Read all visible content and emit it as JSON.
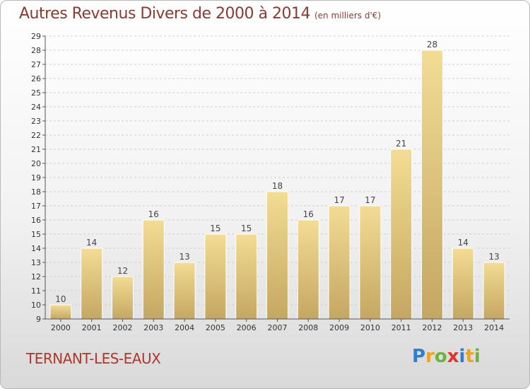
{
  "title": "Autres Revenus Divers de 2000 à 2014",
  "unit": "(en milliers d'€)",
  "city": "TERNANT-LES-EAUX",
  "logo": {
    "text": "Proxiti",
    "letters": [
      "P",
      "r",
      "o",
      "x",
      "i",
      "t",
      "i"
    ]
  },
  "colors": {
    "bar_top": "#f3dc94",
    "bar_bottom": "#c4a762",
    "title": "#8a3a2e",
    "city": "#b1362a",
    "grid": "#cfcfcf"
  },
  "chart_data": {
    "type": "bar",
    "categories": [
      "2000",
      "2001",
      "2002",
      "2003",
      "2004",
      "2005",
      "2006",
      "2007",
      "2008",
      "2009",
      "2010",
      "2011",
      "2012",
      "2013",
      "2014"
    ],
    "values": [
      10,
      14,
      12,
      16,
      13,
      15,
      15,
      18,
      16,
      17,
      17,
      21,
      28,
      14,
      13
    ],
    "ylim": [
      9,
      29
    ],
    "yticks": [
      9,
      10,
      11,
      12,
      13,
      14,
      15,
      16,
      17,
      18,
      19,
      20,
      21,
      22,
      23,
      24,
      25,
      26,
      27,
      28,
      29
    ],
    "grid": true,
    "data_labels": true
  }
}
